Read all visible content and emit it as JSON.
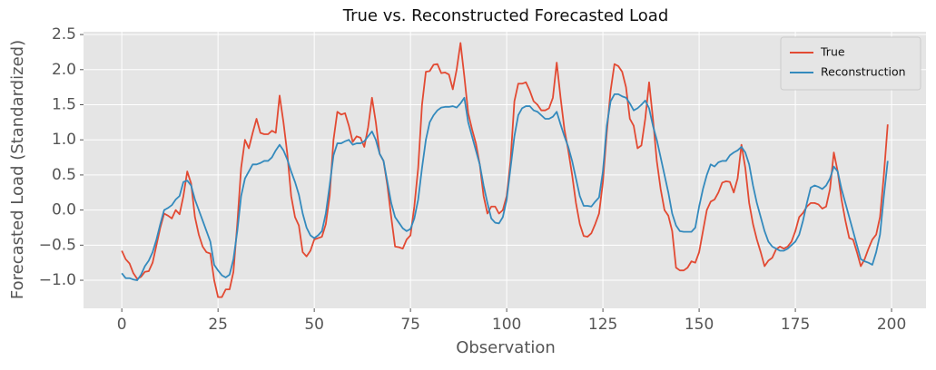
{
  "chart_data": {
    "type": "line",
    "title": "True vs. Reconstructed Forecasted Load",
    "x_label": "Observation",
    "y_label": "Forecasted Load (Standardized)",
    "x": [
      0,
      1,
      2,
      3,
      4,
      5,
      6,
      7,
      8,
      9,
      10,
      11,
      12,
      13,
      14,
      15,
      16,
      17,
      18,
      19,
      20,
      21,
      22,
      23,
      24,
      25,
      26,
      27,
      28,
      29,
      30,
      31,
      32,
      33,
      34,
      35,
      36,
      37,
      38,
      39,
      40,
      41,
      42,
      43,
      44,
      45,
      46,
      47,
      48,
      49,
      50,
      51,
      52,
      53,
      54,
      55,
      56,
      57,
      58,
      59,
      60,
      61,
      62,
      63,
      64,
      65,
      66,
      67,
      68,
      69,
      70,
      71,
      72,
      73,
      74,
      75,
      76,
      77,
      78,
      79,
      80,
      81,
      82,
      83,
      84,
      85,
      86,
      87,
      88,
      89,
      90,
      91,
      92,
      93,
      94,
      95,
      96,
      97,
      98,
      99,
      100,
      101,
      102,
      103,
      104,
      105,
      106,
      107,
      108,
      109,
      110,
      111,
      112,
      113,
      114,
      115,
      116,
      117,
      118,
      119,
      120,
      121,
      122,
      123,
      124,
      125,
      126,
      127,
      128,
      129,
      130,
      131,
      132,
      133,
      134,
      135,
      136,
      137,
      138,
      139,
      140,
      141,
      142,
      143,
      144,
      145,
      146,
      147,
      148,
      149,
      150,
      151,
      152,
      153,
      154,
      155,
      156,
      157,
      158,
      159,
      160,
      161,
      162,
      163,
      164,
      165,
      166,
      167,
      168,
      169,
      170,
      171,
      172,
      173,
      174,
      175,
      176,
      177,
      178,
      179,
      180,
      181,
      182,
      183,
      184,
      185,
      186,
      187,
      188,
      189,
      190,
      191,
      192,
      193,
      194,
      195,
      196,
      197,
      198,
      199
    ],
    "series": [
      {
        "name": "True",
        "color": "#E24A33",
        "values": [
          -0.58,
          -0.7,
          -0.76,
          -0.9,
          -0.98,
          -0.95,
          -0.88,
          -0.87,
          -0.75,
          -0.5,
          -0.25,
          -0.05,
          -0.08,
          -0.12,
          0.0,
          -0.06,
          0.2,
          0.55,
          0.38,
          -0.1,
          -0.35,
          -0.52,
          -0.6,
          -0.62,
          -1.0,
          -1.24,
          -1.24,
          -1.13,
          -1.13,
          -0.88,
          -0.2,
          0.6,
          1.0,
          0.88,
          1.1,
          1.3,
          1.1,
          1.08,
          1.08,
          1.13,
          1.1,
          1.63,
          1.25,
          0.8,
          0.2,
          -0.1,
          -0.22,
          -0.6,
          -0.66,
          -0.58,
          -0.42,
          -0.4,
          -0.38,
          -0.2,
          0.2,
          1.0,
          1.4,
          1.36,
          1.38,
          1.2,
          0.97,
          1.05,
          1.03,
          0.9,
          1.18,
          1.6,
          1.25,
          0.8,
          0.7,
          0.35,
          -0.1,
          -0.52,
          -0.53,
          -0.55,
          -0.42,
          -0.36,
          0.05,
          0.6,
          1.5,
          1.97,
          1.98,
          2.07,
          2.08,
          1.95,
          1.96,
          1.93,
          1.72,
          2.0,
          2.38,
          1.9,
          1.38,
          1.15,
          0.95,
          0.65,
          0.2,
          -0.05,
          0.05,
          0.05,
          -0.05,
          0.0,
          0.2,
          0.7,
          1.55,
          1.8,
          1.8,
          1.82,
          1.7,
          1.55,
          1.5,
          1.42,
          1.42,
          1.45,
          1.6,
          2.1,
          1.6,
          1.15,
          0.85,
          0.5,
          0.1,
          -0.2,
          -0.37,
          -0.38,
          -0.33,
          -0.2,
          -0.05,
          0.4,
          1.1,
          1.7,
          2.08,
          2.05,
          1.97,
          1.75,
          1.3,
          1.2,
          0.88,
          0.92,
          1.3,
          1.82,
          1.3,
          0.7,
          0.3,
          0.0,
          -0.08,
          -0.3,
          -0.82,
          -0.86,
          -0.86,
          -0.82,
          -0.73,
          -0.75,
          -0.6,
          -0.3,
          0.0,
          0.12,
          0.15,
          0.25,
          0.39,
          0.41,
          0.4,
          0.25,
          0.45,
          0.93,
          0.6,
          0.1,
          -0.2,
          -0.42,
          -0.6,
          -0.8,
          -0.72,
          -0.68,
          -0.56,
          -0.52,
          -0.55,
          -0.52,
          -0.45,
          -0.3,
          -0.1,
          -0.04,
          0.05,
          0.1,
          0.1,
          0.08,
          0.02,
          0.05,
          0.3,
          0.82,
          0.55,
          0.15,
          -0.15,
          -0.4,
          -0.42,
          -0.6,
          -0.8,
          -0.7,
          -0.55,
          -0.42,
          -0.35,
          -0.1,
          0.5,
          1.22
        ]
      },
      {
        "name": "Reconstruction",
        "color": "#348ABD",
        "values": [
          -0.9,
          -0.97,
          -0.97,
          -0.99,
          -1.0,
          -0.92,
          -0.8,
          -0.72,
          -0.6,
          -0.42,
          -0.2,
          0.0,
          0.03,
          0.07,
          0.15,
          0.2,
          0.4,
          0.42,
          0.35,
          0.15,
          0.0,
          -0.15,
          -0.3,
          -0.45,
          -0.78,
          -0.86,
          -0.93,
          -0.96,
          -0.92,
          -0.7,
          -0.3,
          0.2,
          0.45,
          0.55,
          0.65,
          0.65,
          0.67,
          0.7,
          0.7,
          0.75,
          0.85,
          0.93,
          0.85,
          0.72,
          0.55,
          0.4,
          0.22,
          -0.05,
          -0.25,
          -0.36,
          -0.4,
          -0.36,
          -0.3,
          -0.05,
          0.35,
          0.78,
          0.95,
          0.95,
          0.98,
          1.0,
          0.93,
          0.95,
          0.95,
          0.98,
          1.05,
          1.12,
          1.0,
          0.8,
          0.7,
          0.4,
          0.1,
          -0.1,
          -0.18,
          -0.26,
          -0.3,
          -0.27,
          -0.12,
          0.15,
          0.6,
          1.0,
          1.25,
          1.35,
          1.42,
          1.46,
          1.47,
          1.47,
          1.48,
          1.46,
          1.52,
          1.6,
          1.25,
          1.05,
          0.85,
          0.65,
          0.35,
          0.1,
          -0.12,
          -0.18,
          -0.19,
          -0.1,
          0.15,
          0.6,
          1.05,
          1.35,
          1.45,
          1.48,
          1.48,
          1.42,
          1.4,
          1.35,
          1.3,
          1.3,
          1.33,
          1.4,
          1.22,
          1.05,
          0.9,
          0.7,
          0.45,
          0.2,
          0.06,
          0.06,
          0.05,
          0.12,
          0.18,
          0.55,
          1.2,
          1.55,
          1.65,
          1.65,
          1.62,
          1.6,
          1.52,
          1.42,
          1.45,
          1.5,
          1.56,
          1.45,
          1.2,
          1.0,
          0.75,
          0.5,
          0.25,
          -0.05,
          -0.22,
          -0.3,
          -0.31,
          -0.31,
          -0.31,
          -0.25,
          0.05,
          0.3,
          0.5,
          0.65,
          0.62,
          0.68,
          0.7,
          0.7,
          0.78,
          0.82,
          0.85,
          0.9,
          0.82,
          0.65,
          0.35,
          0.1,
          -0.1,
          -0.3,
          -0.45,
          -0.52,
          -0.55,
          -0.58,
          -0.58,
          -0.55,
          -0.5,
          -0.45,
          -0.35,
          -0.15,
          0.1,
          0.32,
          0.35,
          0.33,
          0.3,
          0.35,
          0.45,
          0.62,
          0.55,
          0.3,
          0.1,
          -0.1,
          -0.3,
          -0.5,
          -0.7,
          -0.73,
          -0.75,
          -0.78,
          -0.6,
          -0.35,
          0.2,
          0.7
        ]
      }
    ],
    "xlim": [
      -9.95,
      208.95
    ],
    "ylim": [
      -1.4,
      2.54
    ],
    "xticks": [
      0,
      25,
      50,
      75,
      100,
      125,
      150,
      175,
      200
    ],
    "yticks": [
      {
        "value": -1,
        "label": "−1.0"
      },
      {
        "value": -0.5,
        "label": "−0.5"
      },
      {
        "value": 0,
        "label": "0.0"
      },
      0.5,
      {
        "value": 1,
        "label": "1.0"
      },
      1.5,
      {
        "value": 2,
        "label": "2.0"
      },
      2.5
    ],
    "grid": true,
    "legend": "upper right"
  }
}
